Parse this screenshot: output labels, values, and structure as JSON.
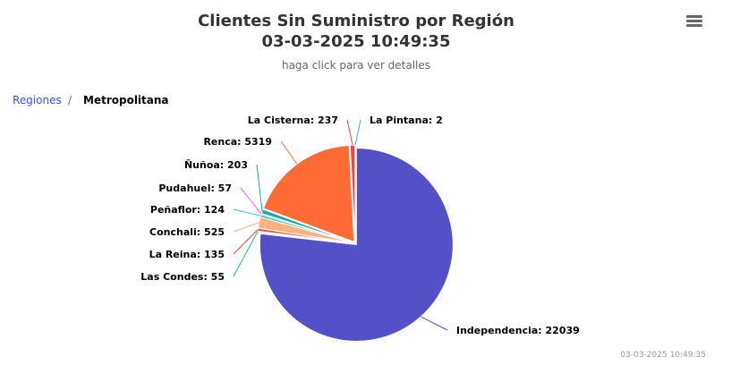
{
  "header": {
    "title_line1": "Clientes Sin Suministro por Región",
    "title_line2": "03-03-2025 10:49:35",
    "subtitle": "haga click para ver detalles"
  },
  "breadcrumb": {
    "parent": "Regiones",
    "separator": "/",
    "current": "Metropolitana"
  },
  "menu": {
    "icon": "hamburger-menu-icon"
  },
  "credits": "03-03-2025 10:49:35",
  "chart_data": {
    "type": "pie",
    "title": "Clientes Sin Suministro por Región",
    "subtitle": "haga click para ver detalles",
    "slices": [
      {
        "name": "Independencia",
        "value": 22039,
        "label": "Independencia: 22039",
        "color": "#5450c8"
      },
      {
        "name": "Las Condes",
        "value": 55,
        "label": "Las Condes: 55",
        "color": "#1fbf8f"
      },
      {
        "name": "La Reina",
        "value": 135,
        "label": "La Reina: 135",
        "color": "#e44b4b"
      },
      {
        "name": "Conchalí",
        "value": 525,
        "label": "Conchali: 525",
        "color": "#ffb27a"
      },
      {
        "name": "Peñaflor",
        "value": 124,
        "label": "Peñaflor: 124",
        "color": "#2cc3d6"
      },
      {
        "name": "Pudahuel",
        "value": 57,
        "label": "Pudahuel: 57",
        "color": "#d467e0"
      },
      {
        "name": "Ñuñoa",
        "value": 203,
        "label": "Ñuñoa: 203",
        "color": "#17a9a9"
      },
      {
        "name": "Renca",
        "value": 5319,
        "label": "Renca: 5319",
        "color": "#ff6b35"
      },
      {
        "name": "La Cisterna",
        "value": 237,
        "label": "La Cisterna: 237",
        "color": "#e8474b"
      },
      {
        "name": "La Pintana",
        "value": 2,
        "label": "La Pintana: 2",
        "color": "#4aa3df"
      }
    ]
  }
}
